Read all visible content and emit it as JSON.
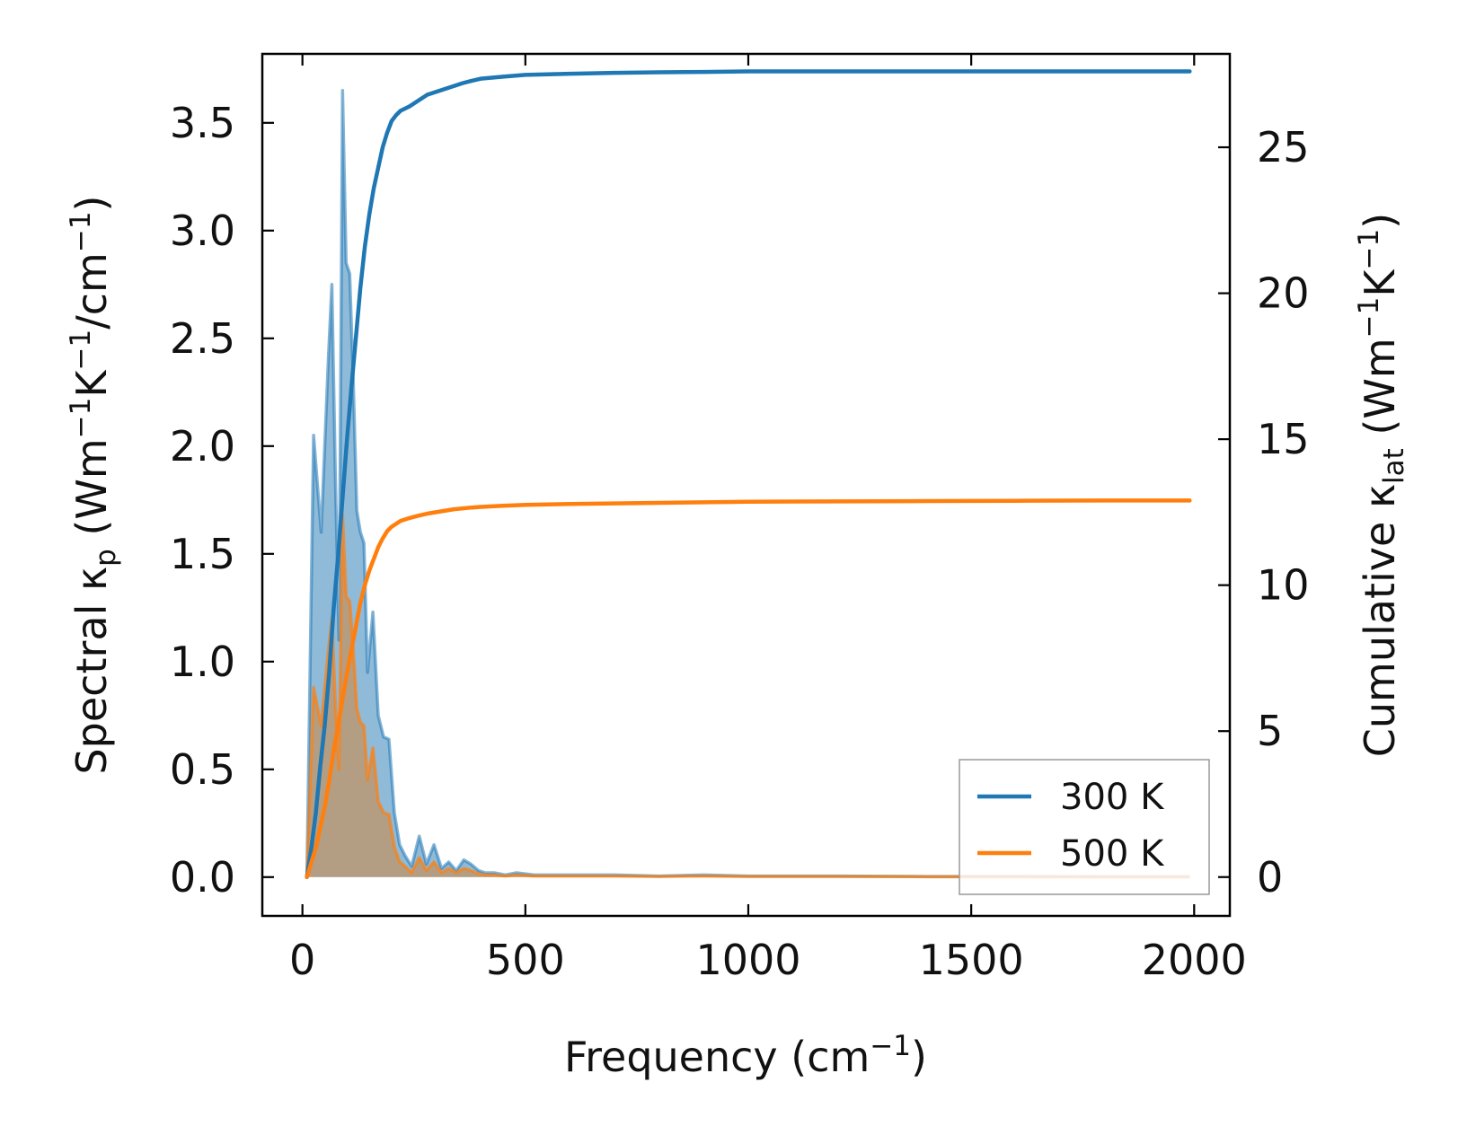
{
  "chart_data": {
    "type": "line",
    "xlabel": "Frequency (cm",
    "xlabel_sup": "−1",
    "xlabel_tail": ")",
    "ylabel_left": {
      "a": "Spectral κ",
      "a_sub": "p",
      "b": " (Wm",
      "b_sup": "−1",
      "c": "K",
      "c_sup": "−1",
      "d": "/cm",
      "d_sup": "−1",
      "e": ")"
    },
    "ylabel_right": {
      "a": "Cumulative κ",
      "a_sub": "lat",
      "b": " (Wm",
      "b_sup": "−1",
      "c": "K",
      "c_sup": "−1",
      "d": ")"
    },
    "xlim": [
      -90,
      2080
    ],
    "ylim_left": [
      -0.18,
      3.82
    ],
    "ylim_right": [
      -1.33,
      28.2
    ],
    "xticks": [
      0,
      500,
      1000,
      1500,
      2000
    ],
    "xtick_labels": [
      "0",
      "500",
      "1000",
      "1500",
      "2000"
    ],
    "yticks_left": [
      0.0,
      0.5,
      1.0,
      1.5,
      2.0,
      2.5,
      3.0,
      3.5
    ],
    "ytick_labels_left": [
      "0.0",
      "0.5",
      "1.0",
      "1.5",
      "2.0",
      "2.5",
      "3.0",
      "3.5"
    ],
    "yticks_right": [
      0,
      5,
      10,
      15,
      20,
      25
    ],
    "ytick_labels_right": [
      "0",
      "5",
      "10",
      "15",
      "20",
      "25"
    ],
    "legend_position": "lower-right",
    "spectral_series": [
      {
        "name": "300 K",
        "color": "#1f77b4",
        "x": [
          10,
          25,
          42,
          58,
          66,
          74,
          82,
          90,
          98,
          106,
          114,
          122,
          130,
          138,
          146,
          158,
          170,
          182,
          194,
          206,
          218,
          230,
          245,
          262,
          278,
          295,
          312,
          328,
          345,
          362,
          378,
          395,
          410,
          430,
          455,
          480,
          520,
          560,
          600,
          650,
          700,
          800,
          900,
          1000,
          1200,
          1400,
          1600,
          1800,
          1990
        ],
        "y": [
          0.0,
          2.05,
          1.6,
          2.4,
          2.75,
          1.85,
          1.1,
          3.65,
          2.85,
          2.8,
          2.3,
          1.7,
          1.6,
          1.55,
          0.95,
          1.23,
          0.75,
          0.65,
          0.64,
          0.3,
          0.15,
          0.1,
          0.05,
          0.19,
          0.06,
          0.15,
          0.04,
          0.07,
          0.03,
          0.08,
          0.06,
          0.03,
          0.02,
          0.02,
          0.01,
          0.02,
          0.01,
          0.01,
          0.01,
          0.01,
          0.01,
          0.005,
          0.01,
          0.005,
          0.005,
          0.003,
          0.003,
          0.002,
          0.001
        ]
      },
      {
        "name": "500 K",
        "color": "#ff7f0e",
        "x": [
          10,
          25,
          42,
          58,
          66,
          74,
          82,
          90,
          98,
          106,
          114,
          122,
          130,
          138,
          146,
          158,
          170,
          182,
          194,
          206,
          218,
          230,
          245,
          262,
          278,
          295,
          312,
          328,
          345,
          362,
          378,
          395,
          410,
          430,
          455,
          480,
          520,
          560,
          600,
          650,
          700,
          800,
          900,
          1000,
          1200,
          1400,
          1600,
          1800,
          1990
        ],
        "y": [
          0.0,
          0.88,
          0.7,
          1.05,
          1.2,
          0.8,
          0.5,
          1.68,
          1.3,
          1.28,
          1.05,
          0.78,
          0.72,
          0.7,
          0.45,
          0.6,
          0.35,
          0.3,
          0.29,
          0.14,
          0.07,
          0.05,
          0.02,
          0.09,
          0.03,
          0.07,
          0.02,
          0.04,
          0.02,
          0.04,
          0.03,
          0.015,
          0.01,
          0.01,
          0.005,
          0.01,
          0.005,
          0.005,
          0.005,
          0.005,
          0.005,
          0.003,
          0.005,
          0.003,
          0.003,
          0.002,
          0.002,
          0.001,
          0.001
        ]
      }
    ],
    "cumulative_series": [
      {
        "name": "300 K",
        "color": "#1f77b4",
        "x": [
          10,
          20,
          30,
          40,
          50,
          60,
          70,
          80,
          90,
          100,
          110,
          120,
          130,
          140,
          150,
          160,
          170,
          180,
          190,
          200,
          210,
          220,
          240,
          260,
          280,
          300,
          320,
          340,
          360,
          380,
          400,
          450,
          500,
          600,
          700,
          800,
          900,
          1000,
          1200,
          1400,
          1600,
          1800,
          1990
        ],
        "y": [
          0,
          1.0,
          2.2,
          3.8,
          5.2,
          7.0,
          9.2,
          11.0,
          13.0,
          15.0,
          16.8,
          18.5,
          20.2,
          21.6,
          22.7,
          23.6,
          24.3,
          25.0,
          25.5,
          25.9,
          26.1,
          26.25,
          26.4,
          26.6,
          26.8,
          26.9,
          27.0,
          27.1,
          27.2,
          27.28,
          27.35,
          27.42,
          27.48,
          27.52,
          27.55,
          27.57,
          27.58,
          27.6,
          27.6,
          27.6,
          27.6,
          27.6,
          27.6
        ]
      },
      {
        "name": "500 K",
        "color": "#ff7f0e",
        "x": [
          10,
          20,
          30,
          40,
          50,
          60,
          70,
          80,
          90,
          100,
          110,
          120,
          130,
          140,
          150,
          160,
          170,
          180,
          190,
          200,
          210,
          220,
          240,
          260,
          280,
          300,
          320,
          340,
          360,
          380,
          400,
          450,
          500,
          600,
          700,
          800,
          900,
          1000,
          1200,
          1400,
          1600,
          1800,
          1990
        ],
        "y": [
          0,
          0.5,
          1.0,
          1.7,
          2.4,
          3.3,
          4.3,
          5.2,
          6.1,
          7.0,
          7.8,
          8.6,
          9.4,
          10.0,
          10.5,
          10.9,
          11.3,
          11.6,
          11.85,
          12.0,
          12.1,
          12.2,
          12.3,
          12.38,
          12.45,
          12.5,
          12.55,
          12.6,
          12.63,
          12.66,
          12.68,
          12.72,
          12.75,
          12.78,
          12.8,
          12.82,
          12.84,
          12.86,
          12.87,
          12.88,
          12.89,
          12.9,
          12.9
        ]
      }
    ]
  }
}
